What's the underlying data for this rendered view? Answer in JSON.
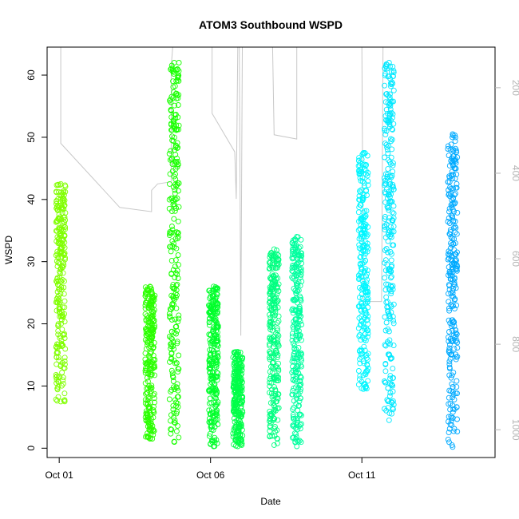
{
  "chart_data": {
    "type": "scatter",
    "title": "ATOM3 Southbound WSPD",
    "xlabel": "Date",
    "ylabel": "WSPD",
    "x_tick_labels": [
      "Oct 01",
      "Oct 06",
      "Oct 11"
    ],
    "x_tick_days": [
      1,
      6,
      11
    ],
    "xlim_days": [
      0.6,
      15.4
    ],
    "ylim": [
      -1.5,
      64.5
    ],
    "y_ticks": [
      0,
      10,
      20,
      30,
      40,
      50,
      60
    ],
    "y2_ticks": [
      200,
      400,
      600,
      800,
      1000
    ],
    "y2_lim": [
      105,
      1065
    ],
    "grid": false,
    "legend": "none",
    "point_series": [
      {
        "day": 1.05,
        "min": 7.5,
        "max": 42.5,
        "color": "#80ff00"
      },
      {
        "day": 4.0,
        "min": 1.5,
        "max": 26.0,
        "color": "#2bff00"
      },
      {
        "day": 4.8,
        "min": 1.0,
        "max": 62.0,
        "color": "#19ff00"
      },
      {
        "day": 6.1,
        "min": 0.3,
        "max": 26.0,
        "color": "#00ff2b"
      },
      {
        "day": 6.9,
        "min": 0.3,
        "max": 15.5,
        "color": "#00ff48"
      },
      {
        "day": 8.1,
        "min": 0.5,
        "max": 32.0,
        "color": "#00ff80"
      },
      {
        "day": 8.85,
        "min": 0.3,
        "max": 34.0,
        "color": "#00ff9f"
      },
      {
        "day": 11.05,
        "min": 9.5,
        "max": 47.5,
        "color": "#00f6ff"
      },
      {
        "day": 11.9,
        "min": 4.5,
        "max": 62.0,
        "color": "#00e8ff"
      },
      {
        "day": 14.0,
        "min": 0.2,
        "max": 50.5,
        "color": "#00aaff"
      }
    ],
    "line_series": {
      "name": "",
      "color": "#c8c8c8",
      "points_y2": [
        [
          1.05,
          100
        ],
        [
          1.05,
          330
        ],
        [
          3.0,
          480
        ],
        [
          4.05,
          490
        ],
        [
          4.05,
          440
        ],
        [
          4.25,
          425
        ],
        [
          4.7,
          420
        ],
        [
          4.7,
          150
        ],
        [
          4.75,
          100
        ],
        [
          4.85,
          100
        ],
        [
          4.9,
          90
        ],
        [
          5.1,
          100
        ],
        [
          6.0,
          80
        ],
        [
          6.05,
          100
        ],
        [
          6.05,
          260
        ],
        [
          6.8,
          350
        ],
        [
          6.85,
          460
        ],
        [
          6.9,
          100
        ],
        [
          6.95,
          100
        ],
        [
          7.0,
          780
        ],
        [
          7.05,
          80
        ],
        [
          8.05,
          100
        ],
        [
          8.1,
          310
        ],
        [
          8.85,
          320
        ],
        [
          8.85,
          100
        ],
        [
          8.9,
          100
        ],
        [
          11.0,
          100
        ],
        [
          11.05,
          700
        ],
        [
          11.65,
          700
        ],
        [
          11.7,
          100
        ],
        [
          11.8,
          100
        ],
        [
          11.85,
          100
        ],
        [
          14.0,
          100
        ],
        [
          14.05,
          100
        ]
      ]
    }
  }
}
